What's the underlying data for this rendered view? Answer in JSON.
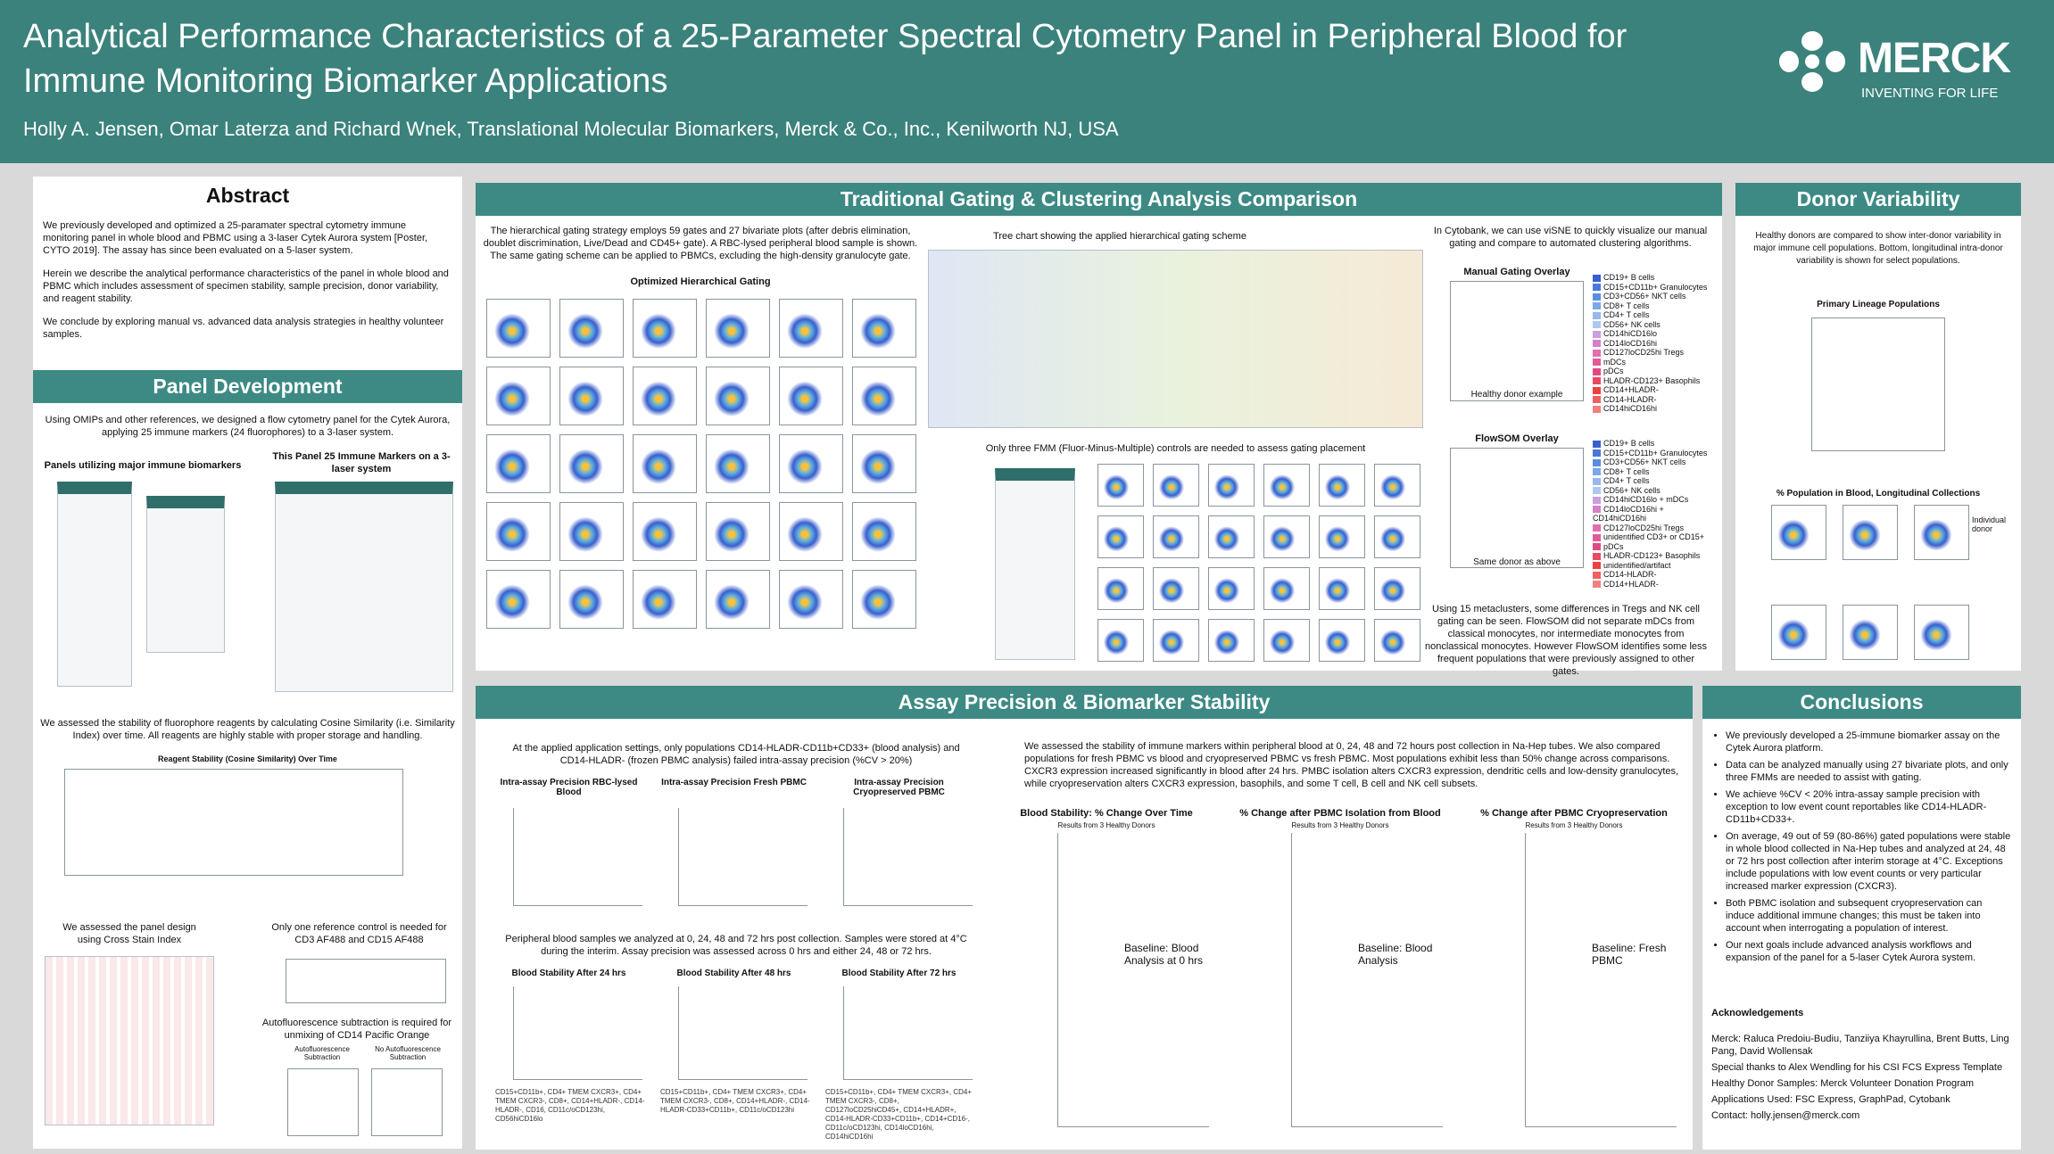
{
  "header": {
    "title": "Analytical Performance Characteristics of a 25-Parameter Spectral Cytometry Panel in Peripheral Blood for Immune Monitoring Biomarker Applications",
    "authors": "Holly A. Jensen, Omar Laterza and Richard Wnek, Translational Molecular Biomarkers, Merck & Co., Inc., Kenilworth NJ, USA",
    "logo_name": "MERCK",
    "logo_tagline": "INVENTING FOR LIFE"
  },
  "abstract": {
    "title": "Abstract",
    "paragraphs": [
      "We previously developed and optimized a 25-paramater spectral cytometry immune monitoring panel in whole blood and PBMC using a 3-laser Cytek Aurora system [Poster, CYTO 2019]. The assay has since been evaluated on a 5-laser system.",
      "Herein we describe the analytical performance characteristics of the panel in whole blood and PBMC which includes assessment of specimen stability, sample precision, donor variability, and reagent stability.",
      "We conclude by exploring manual vs. advanced data analysis strategies in healthy volunteer samples."
    ]
  },
  "panel": {
    "title": "Panel Development",
    "intro": "Using OMIPs and other references, we designed a flow cytometry panel for the Cytek Aurora, applying 25 immune markers (24 fluorophores) to a 3-laser system.",
    "table_caption_left": "Panels utilizing major immune biomarkers",
    "table_caption_right": "This Panel 25 Immune Markers on a 3-laser system",
    "stability_text": "We assessed the stability of fluorophore reagents by calculating Cosine Similarity (i.e. Similarity Index) over time. All reagents are highly stable with proper storage and handling.",
    "stability_chart_title": "Reagent Stability (Cosine Similarity) Over Time",
    "cross_stain_text": "We assessed the panel design using Cross Stain Index",
    "reference_text": "Only one reference control is needed for CD3 AF488 and CD15 AF488",
    "autofluor_text": "Autofluorescence subtraction is required for unmixing of CD14 Pacific Orange",
    "autofluor_labels": [
      "Autofluorescence Subtraction",
      "No Autofluorescence Subtraction"
    ]
  },
  "gating": {
    "title": "Traditional Gating & Clustering Analysis Comparison",
    "intro": "The hierarchical gating strategy employs 59 gates and 27 bivariate plots (after debris elimination, doublet discrimination, Live/Dead and CD45+ gate). A RBC-lysed peripheral blood sample is shown. The same gating scheme can be applied to PBMCs, excluding the high-density granulocyte gate.",
    "grid_title": "Optimized Hierarchical Gating",
    "tree_caption": "Tree chart showing the applied hierarchical gating scheme",
    "fmm_text": "Only three FMM (Fluor-Minus-Multiple) controls are needed to assess gating placement",
    "cytobank_text": "In Cytobank, we can use viSNE to quickly visualize our manual gating and compare to automated clustering algorithms.",
    "manual_title": "Manual Gating Overlay",
    "manual_note": "Healthy donor example",
    "manual_legend": [
      {
        "name": "CD19+ B cells",
        "color": "#3a5fcd"
      },
      {
        "name": "CD15+CD11b+ Granulocytes",
        "color": "#4a78d8"
      },
      {
        "name": "CD3+CD56+ NKT cells",
        "color": "#5a8fe0"
      },
      {
        "name": "CD8+ T cells",
        "color": "#7aa9e8"
      },
      {
        "name": "CD4+ T cells",
        "color": "#9ab8e8"
      },
      {
        "name": "CD56+ NK cells",
        "color": "#b0c8f0"
      },
      {
        "name": "CD14hiCD16lo",
        "color": "#c9a0dc"
      },
      {
        "name": "CD14loCD16hi",
        "color": "#d580c8"
      },
      {
        "name": "CD127loCD25hi Tregs",
        "color": "#e070b0"
      },
      {
        "name": "mDCs",
        "color": "#e05a9a"
      },
      {
        "name": "pDCs",
        "color": "#e04a80"
      },
      {
        "name": "HLADR-CD123+ Basophils",
        "color": "#e84a60"
      },
      {
        "name": "CD14+HLADR-",
        "color": "#f04040"
      },
      {
        "name": "CD14-HLADR-",
        "color": "#f06060"
      },
      {
        "name": "CD14hiCD16hi",
        "color": "#f08080"
      }
    ],
    "flowsom_title": "FlowSOM Overlay",
    "flowsom_note": "Same donor as above",
    "flowsom_legend": [
      {
        "name": "CD19+ B cells",
        "color": "#3a5fcd"
      },
      {
        "name": "CD15+CD11b+ Granulocytes",
        "color": "#4a78d8"
      },
      {
        "name": "CD3+CD56+ NKT cells",
        "color": "#5a8fe0"
      },
      {
        "name": "CD8+ T cells",
        "color": "#7aa9e8"
      },
      {
        "name": "CD4+ T cells",
        "color": "#9ab8e8"
      },
      {
        "name": "CD56+ NK cells",
        "color": "#b0c8f0"
      },
      {
        "name": "CD14hiCD16lo + mDCs",
        "color": "#c9a0dc"
      },
      {
        "name": "CD14loCD16hi + CD14hiCD16hi",
        "color": "#d580c8"
      },
      {
        "name": "CD127loCD25hi Tregs",
        "color": "#e070b0"
      },
      {
        "name": "unidentified CD3+ or CD15+",
        "color": "#e05a9a"
      },
      {
        "name": "pDCs",
        "color": "#e04a80"
      },
      {
        "name": "HLADR-CD123+ Basophils",
        "color": "#e84a60"
      },
      {
        "name": "unidentified/artifact",
        "color": "#f04040"
      },
      {
        "name": "CD14-HLADR-",
        "color": "#f06060"
      },
      {
        "name": "CD14+HLADR-",
        "color": "#f08080"
      }
    ],
    "bottom_text": "Using 15 metaclusters, some differences in Tregs and NK cell gating can be seen. FlowSOM did not separate mDCs from classical monocytes, nor intermediate monocytes from nonclassical monocytes. However FlowSOM identifies some less frequent populations that were previously assigned to other gates."
  },
  "donor": {
    "title": "Donor Variability",
    "text": "Healthy donors are compared to show inter-donor variability in major immune cell populations. Bottom, longitudinal intra-donor variability is shown for select populations.",
    "chart_title": "Primary Lineage Populations",
    "long_title": "% Population in Blood, Longitudinal Collections",
    "long_note": "Individual donor"
  },
  "assay": {
    "title": "Assay Precision & Biomarker Stability",
    "text1": "At the applied application settings, only populations CD14-HLADR-CD11b+CD33+ (blood analysis) and CD14-HLADR- (frozen PBMC analysis) failed intra-assay precision (%CV > 20%)",
    "precision_titles": [
      "Intra-assay Precision RBC-lysed Blood",
      "Intra-assay Precision Fresh PBMC",
      "Intra-assay Precision Cryopreserved PBMC"
    ],
    "text2": "Peripheral blood samples we analyzed at 0, 24, 48 and 72 hrs post collection. Samples were stored at 4°C during the interim. Assay precision was assessed across 0 hrs and either 24, 48 or 72 hrs.",
    "stability_titles": [
      "Blood Stability After 24 hrs",
      "Blood Stability After 48 hrs",
      "Blood Stability After 72 hrs"
    ],
    "footnotes": [
      "CD15+CD11b+, CD4+ TMEM CXCR3+, CD4+ TMEM CXCR3-, CD8+, CD14+HLADR-, CD14-HLADR-, CD16, CD11c/oCD123hi, CD56hiCD16lo",
      "CD15+CD11b+, CD4+ TMEM CXCR3+, CD4+ TMEM CXCR3-, CD8+, CD14+HLADR-, CD14-HLADR-CD33+CD11b+, CD11c/oCD123hi",
      "CD15+CD11b+, CD4+ TMEM CXCR3+, CD4+ TMEM CXCR3-, CD8+, CD127loCD25hiCD45+, CD14+HLADR+, CD14-HLADR-CD33+CD11b+, CD14+CD16-, CD11c/oCD123hi, CD14loCD16hi, CD14hiCD16hi"
    ],
    "text3": "We assessed the stability of immune markers within peripheral blood at 0, 24, 48 and 72 hours post collection in Na-Hep tubes. We also compared populations for fresh PBMC vs blood and cryopreserved PBMC vs fresh PBMC. Most populations exhibit less than 50% change across comparisons. CXCR3 expression increased significantly in blood after 24 hrs. PMBC isolation alters CXCR3 expression, dendritic cells and low-density granulocytes, while cryopreservation alters CXCR3 expression, basophils, and some T cell, B cell and NK cell subsets.",
    "change_titles": [
      "Blood Stability: % Change Over Time",
      "% Change after PBMC Isolation from Blood",
      "% Change after PBMC Cryopreservation"
    ],
    "change_subtitle": "Results from 3 Healthy Donors",
    "baselines": [
      "Baseline: Blood Analysis at 0 hrs",
      "Baseline: Blood Analysis",
      "Baseline: Fresh PBMC"
    ]
  },
  "conclusions": {
    "title": "Conclusions",
    "bullets": [
      "We previously developed a 25-immune biomarker assay on the Cytek Aurora platform.",
      "Data can be analyzed manually using 27 bivariate plots, and only three FMMs are needed to assist with gating.",
      "We achieve %CV < 20% intra-assay sample precision with exception to low event count reportables like CD14-HLADR-CD11b+CD33+.",
      "On average, 49 out of 59 (80-86%) gated populations were stable in whole blood collected in Na-Hep tubes and analyzed at 24, 48 or 72 hrs post collection after interim storage at 4°C. Exceptions include populations with low event counts or very particular increased marker expression (CXCR3).",
      "Both PBMC isolation and subsequent cryopreservation can induce additional immune changes; this must be taken into account when interrogating a population of interest.",
      "Our next goals include advanced analysis workflows and expansion of the panel for a 5-laser Cytek Aurora system."
    ],
    "ack_title": "Acknowledgements",
    "ack_lines": [
      "Merck: Raluca Predoiu-Budiu, Tanziiya Khayrullina, Brent Butts, Ling Pang, David Wollensak",
      "Special thanks to Alex Wendling for his CSI FCS Express Template",
      "Healthy Donor Samples: Merck Volunteer Donation Program",
      "Applications Used: FSC Express, GraphPad, Cytobank",
      "Contact: holly.jensen@merck.com"
    ]
  }
}
